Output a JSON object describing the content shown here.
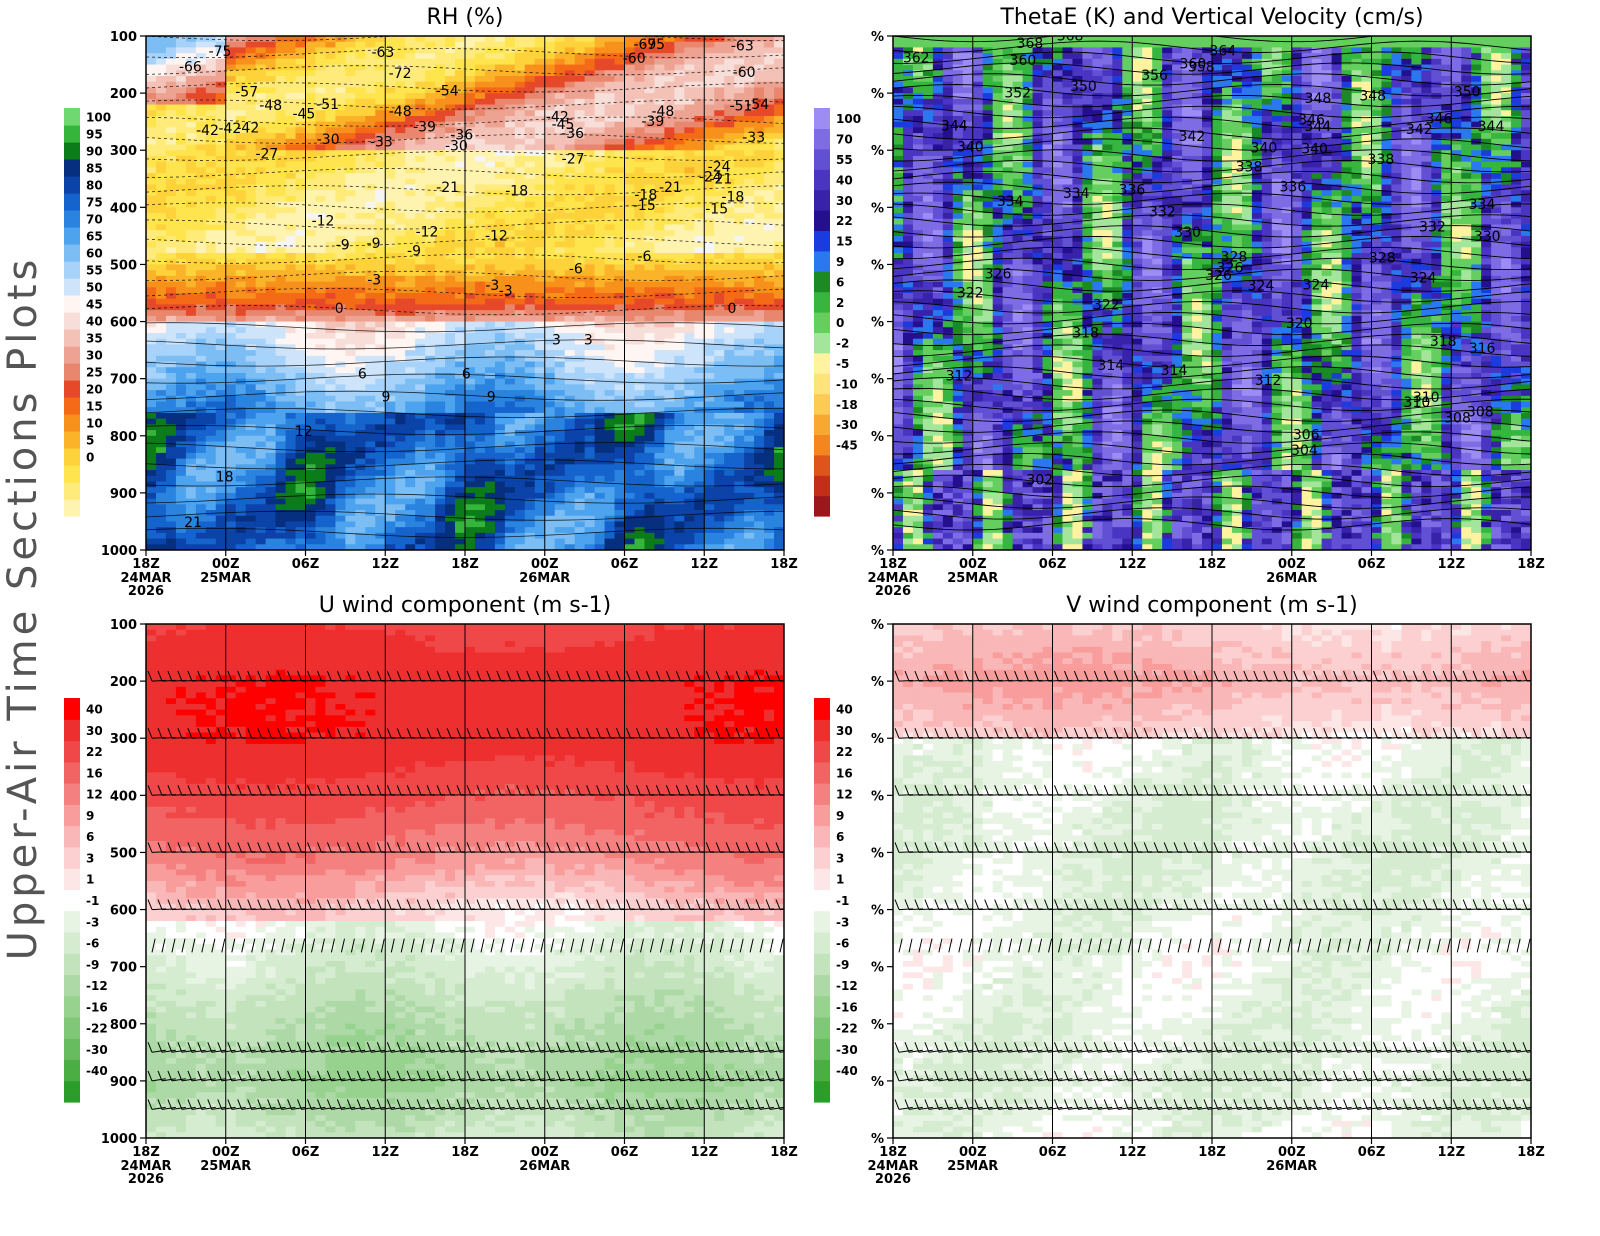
{
  "page": {
    "side_title": "Upper-Air Time Sections Plots",
    "year_label": "2026"
  },
  "time_axis": {
    "labels": [
      "18Z",
      "00Z",
      "06Z",
      "12Z",
      "18Z",
      "00Z",
      "06Z",
      "12Z",
      "18Z"
    ],
    "date_labels": [
      {
        "index": 0,
        "text": "24MAR"
      },
      {
        "index": 1,
        "text": "25MAR"
      },
      {
        "index": 5,
        "text": "26MAR"
      }
    ]
  },
  "pressure_axis": {
    "levels": [
      100,
      200,
      300,
      400,
      500,
      600,
      700,
      800,
      900,
      1000
    ],
    "right_panel_tick_label": "%"
  },
  "colors": {
    "rh_palette": [
      "#f5f5f5",
      "#fff3b0",
      "#ffeb7a",
      "#fee44d",
      "#fdd23a",
      "#fbb42a",
      "#f8911c",
      "#f56a17",
      "#e6492a",
      "#e9866e",
      "#eea392",
      "#f3c1b6",
      "#f8ded8",
      "#fff5f3",
      "#cde4fb",
      "#a7d2fa",
      "#7cbdf4",
      "#4da3ee",
      "#2a83df",
      "#1563cc",
      "#0b43a8",
      "#06307f",
      "#0c7b1a",
      "#35b53c",
      "#70d870"
    ],
    "thetae_palette": [
      "#f5f5f5",
      "#9d8cf4",
      "#7e6ce4",
      "#6250d4",
      "#4a35c3",
      "#3822aa",
      "#24108f",
      "#1c3bdf",
      "#2a78f0",
      "#1b8a25",
      "#36b541",
      "#64cf5f",
      "#a3e69b",
      "#fff3a0",
      "#fde378",
      "#fccb52",
      "#f9a82f",
      "#f5861d",
      "#df541b",
      "#c42d1c",
      "#9c171c"
    ],
    "wind_palette": [
      "#2a9d2a",
      "#4aae44",
      "#66bc5e",
      "#80c877",
      "#97d28f",
      "#add9a6",
      "#c2e3bc",
      "#d5ecd1",
      "#e7f4e4",
      "#ffffff",
      "#fde6e6",
      "#fcd0d0",
      "#fab7b7",
      "#f89c9c",
      "#f58080",
      "#f26464",
      "#f04848",
      "#ee2f2f",
      "#ff0000"
    ]
  },
  "chart_data": [
    {
      "id": "rh",
      "type": "heatmap",
      "title": "RH (%)",
      "ylim": [
        100,
        1000
      ],
      "colorbar_labels": [
        "100",
        "95",
        "90",
        "85",
        "80",
        "75",
        "70",
        "65",
        "60",
        "55",
        "50",
        "45",
        "40",
        "35",
        "30",
        "25",
        "20",
        "15",
        "10",
        "5",
        "0"
      ],
      "contour_labels": [
        "-75",
        "-75",
        "-69",
        "-66",
        "-63",
        "-60",
        "-72",
        "-63",
        "-60",
        "-57",
        "-54",
        "-54",
        "-51",
        "-48",
        "-51",
        "-48",
        "-48",
        "-45",
        "-42",
        "-42",
        "-45",
        "-42",
        "-42",
        "-39",
        "-36",
        "-39",
        "-36",
        "-33",
        "-33",
        "-30",
        "-27",
        "-30",
        "-27",
        "-24",
        "-21",
        "-21",
        "-24",
        "-21",
        "-18",
        "-18",
        "-18",
        "-15",
        "-15",
        "-12",
        "-12",
        "-12",
        "-9",
        "-9",
        "-9",
        "-6",
        "-6",
        "-3",
        "-3",
        "-3",
        "0",
        "0",
        "3",
        "3",
        "6",
        "6",
        "9",
        "9",
        "12",
        "18",
        "21"
      ]
    },
    {
      "id": "thetae",
      "type": "heatmap",
      "title": "ThetaE (K) and Vertical Velocity (cm/s)",
      "colorbar_labels": [
        "100",
        "70",
        "55",
        "40",
        "30",
        "22",
        "15",
        "9",
        "6",
        "2",
        "0",
        "-2",
        "-5",
        "-10",
        "-18",
        "-30",
        "-45"
      ],
      "contour_labels": [
        "368",
        "364",
        "368",
        "360",
        "362",
        "360",
        "352",
        "356",
        "358",
        "350",
        "346",
        "348",
        "350",
        "348",
        "346",
        "344",
        "344",
        "344",
        "342",
        "342",
        "340",
        "340",
        "340",
        "338",
        "338",
        "336",
        "336",
        "334",
        "334",
        "334",
        "332",
        "332",
        "330",
        "330",
        "328",
        "328",
        "326",
        "326",
        "326",
        "324",
        "324",
        "324",
        "322",
        "322",
        "320",
        "318",
        "318",
        "316",
        "314",
        "314",
        "312",
        "312",
        "310",
        "310",
        "308",
        "308",
        "306",
        "304",
        "302"
      ]
    },
    {
      "id": "u",
      "type": "heatmap",
      "title": "U wind component (m s-1)",
      "ylim": [
        100,
        1000
      ],
      "colorbar_labels": [
        "40",
        "30",
        "22",
        "16",
        "12",
        "9",
        "6",
        "3",
        "1",
        "-1",
        "-3",
        "-6",
        "-9",
        "-12",
        "-16",
        "-22",
        "-30",
        "-40"
      ],
      "barb_levels": [
        200,
        300,
        400,
        500,
        600,
        675,
        850,
        900,
        950
      ]
    },
    {
      "id": "v",
      "type": "heatmap",
      "title": "V wind component (m s-1)",
      "colorbar_labels": [
        "40",
        "30",
        "22",
        "16",
        "12",
        "9",
        "6",
        "3",
        "1",
        "-1",
        "-3",
        "-6",
        "-9",
        "-12",
        "-16",
        "-22",
        "-30",
        "-40"
      ],
      "barb_levels": [
        200,
        300,
        400,
        500,
        600,
        675,
        850,
        900,
        950
      ]
    }
  ]
}
